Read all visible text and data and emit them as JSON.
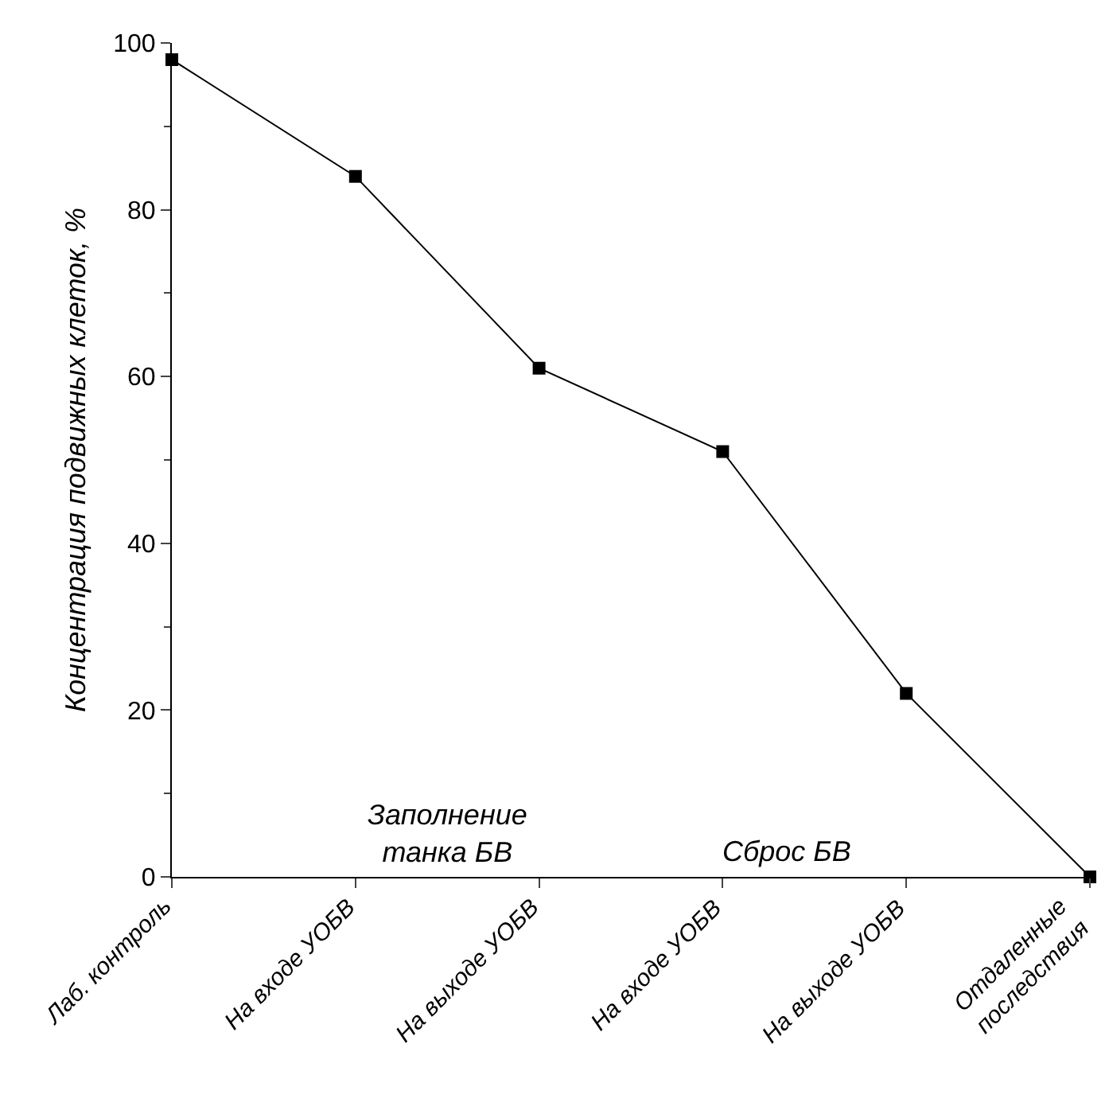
{
  "chart_data": {
    "type": "line",
    "ylabel": "Концентрация подвижных клеток, %",
    "categories": [
      "Лаб. контроль",
      "На входе УОБВ",
      "На выходе УОБВ",
      "На входе УОБВ",
      "На выходе УОБВ",
      "Отдаленные\nпоследствия"
    ],
    "series": [
      {
        "color": "#000000",
        "values": [
          98,
          84,
          61,
          51,
          22,
          0
        ]
      }
    ],
    "ylim": [
      0,
      100
    ],
    "yticks": [
      0,
      20,
      40,
      60,
      80,
      100
    ],
    "marker": "square",
    "line_style": "solid",
    "grid": false,
    "annotations": [
      "Заполнение\nтанка БВ",
      "Сброс БВ"
    ]
  }
}
